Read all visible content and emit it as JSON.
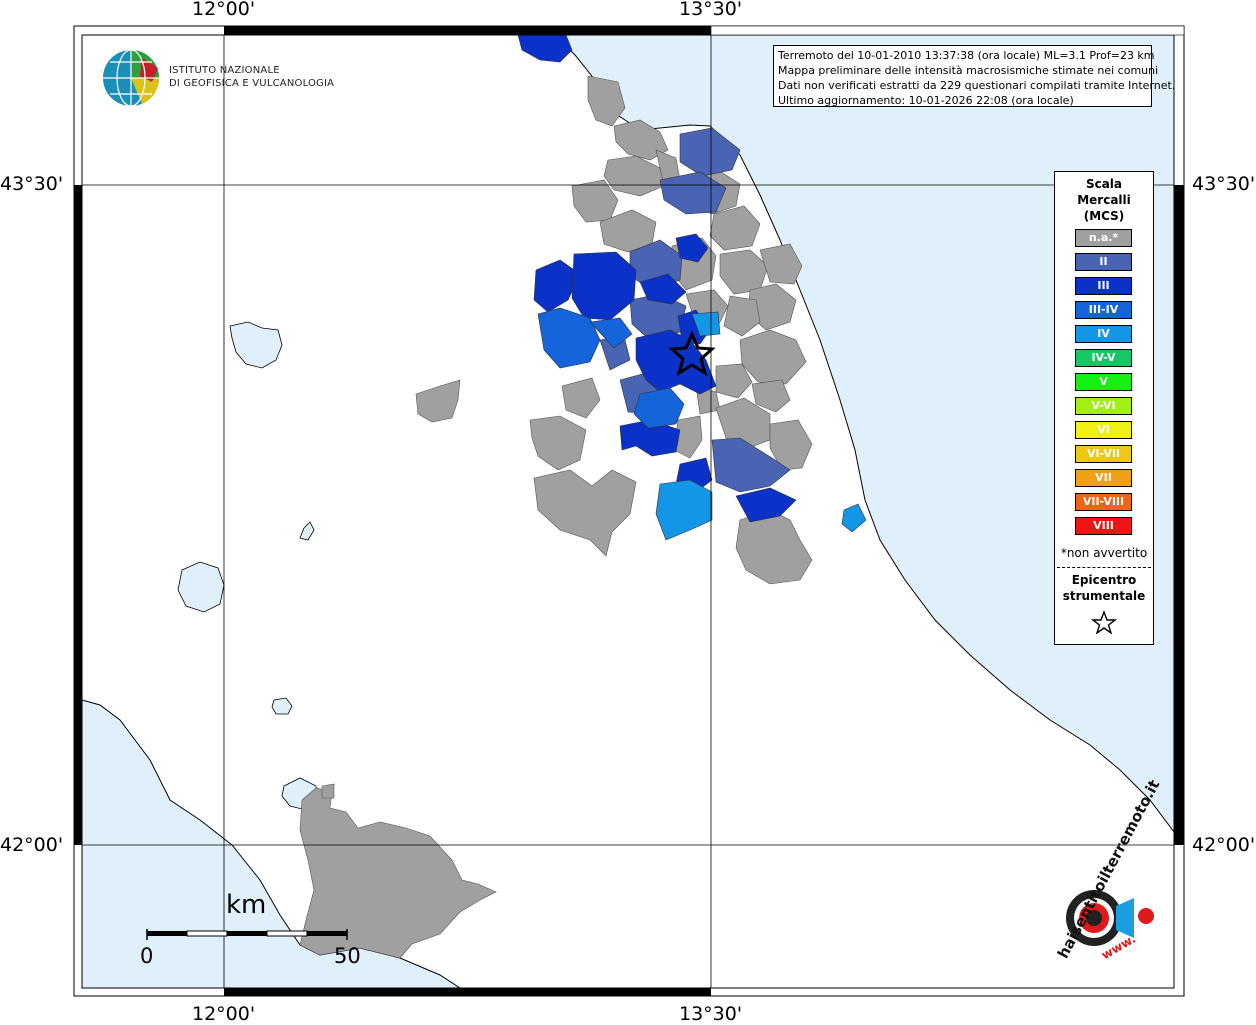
{
  "map": {
    "grid_labels": {
      "lon_left": "12°00'",
      "lon_right": "13°30'",
      "lat_top": "43°30'",
      "lat_bottom": "42°00'"
    },
    "colors": {
      "sea": "#dff0fb",
      "land": "#ffffff",
      "na": "#a0a0a0",
      "II": "#4a64b4",
      "III": "#0a32c8",
      "III-IV": "#1464dc",
      "IV": "#1496e6",
      "IV-V": "#14c864",
      "V": "#14f014",
      "V-VI": "#a0f014",
      "VI": "#f0f014",
      "VI-VII": "#f0c814",
      "VII": "#f0a014",
      "VII-VIII": "#f06414",
      "VIII": "#f01414"
    }
  },
  "info": {
    "line1": "Terremoto del 10-01-2010 13:37:38 (ora locale) ML=3.1 Prof=23 km",
    "line2": "Mappa preliminare delle intensità macrosismiche stimate nei comuni",
    "line3": "Dati non verificati estratti da 229 questionari compilati tramite Internet.",
    "line4": "Ultimo aggiornamento: 10-01-2026 22:08 (ora locale)"
  },
  "legend": {
    "title_line1": "Scala",
    "title_line2": "Mercalli",
    "title_line3": "(MCS)",
    "items": [
      {
        "label": "n.a.*",
        "color": "#a0a0a0"
      },
      {
        "label": "II",
        "color": "#4a64b4"
      },
      {
        "label": "III",
        "color": "#0a32c8"
      },
      {
        "label": "III-IV",
        "color": "#1464dc"
      },
      {
        "label": "IV",
        "color": "#1496e6"
      },
      {
        "label": "IV-V",
        "color": "#14c864"
      },
      {
        "label": "V",
        "color": "#14f014"
      },
      {
        "label": "V-VI",
        "color": "#a0f014"
      },
      {
        "label": "VI",
        "color": "#f0f014"
      },
      {
        "label": "VI-VII",
        "color": "#f0c814"
      },
      {
        "label": "VII",
        "color": "#f0a014"
      },
      {
        "label": "VII-VIII",
        "color": "#f06414"
      },
      {
        "label": "VIII",
        "color": "#f01414"
      }
    ],
    "note": "*non avvertito",
    "epicenter_line1": "Epicentro",
    "epicenter_line2": "strumentale",
    "epicenter_icon": "star-icon"
  },
  "logo": {
    "line1": "ISTITUTO NAZIONALE",
    "line2": "DI GEOFISICA E VULCANOLOGIA",
    "icon": "ingv-globe-icon"
  },
  "scalebar": {
    "unit": "km",
    "start": "0",
    "end": "50"
  },
  "haisentito": {
    "text": "haisentitoilterremoto.it",
    "www": "www.",
    "icon": "haisentito-logo-icon"
  }
}
